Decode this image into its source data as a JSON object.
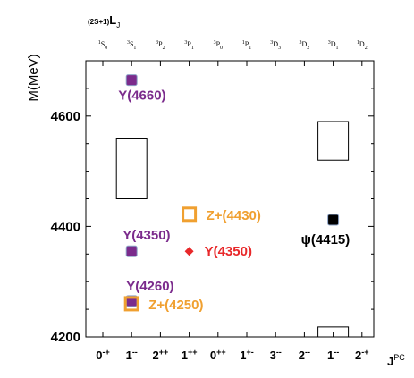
{
  "chart_data": {
    "type": "scatter",
    "title": "",
    "ylabel": "M(MeV)",
    "xlabel": "J^PC",
    "top_axis_label": "(2S+1)L_J",
    "ylim": [
      4200,
      4700
    ],
    "yticks": [
      4200,
      4400,
      4600
    ],
    "grid": false,
    "categories": [
      "0-+",
      "1--",
      "2++",
      "1++",
      "0++",
      "1+-",
      "3--",
      "2--",
      "1--",
      "2-+"
    ],
    "top_categories": [
      {
        "sup": "1",
        "main": "S",
        "sub": "0"
      },
      {
        "sup": "3",
        "main": "S",
        "sub": "1"
      },
      {
        "sup": "3",
        "main": "P",
        "sub": "2"
      },
      {
        "sup": "3",
        "main": "P",
        "sub": "1"
      },
      {
        "sup": "3",
        "main": "P",
        "sub": "0"
      },
      {
        "sup": "1",
        "main": "P",
        "sub": "1"
      },
      {
        "sup": "3",
        "main": "D",
        "sub": "3"
      },
      {
        "sup": "3",
        "main": "D",
        "sub": "2"
      },
      {
        "sup": "3",
        "main": "D",
        "sub": "1"
      },
      {
        "sup": "1",
        "main": "D",
        "sub": "2"
      }
    ],
    "boxes": [
      {
        "category_index": 1,
        "y_low": 4450,
        "y_high": 4560
      },
      {
        "category_index": 8,
        "y_low": 4520,
        "y_high": 4590
      },
      {
        "category_index": 8,
        "y_low": 4200,
        "y_high": 4218
      }
    ],
    "points": [
      {
        "label": "Y(4660)",
        "category_index": 1,
        "y": 4665,
        "marker": "square",
        "color": "#7b2b8c"
      },
      {
        "label": "Y(4350)",
        "category_index": 1,
        "y": 4355,
        "marker": "square",
        "color": "#7b2b8c"
      },
      {
        "label": "Y(4260)",
        "category_index": 1,
        "y": 4265,
        "marker": "square",
        "color": "#7b2b8c"
      },
      {
        "label": "Z+(4250)",
        "category_index": 1,
        "y": 4260,
        "marker": "open-square",
        "color": "#f0a030"
      },
      {
        "label": "Z+(4430)",
        "category_index": 3,
        "y": 4422,
        "marker": "open-square",
        "color": "#f0a030"
      },
      {
        "label": "Y(4350)",
        "category_index": 3,
        "y": 4355,
        "marker": "diamond",
        "color": "#e8282a"
      },
      {
        "label": "ψ(4415)",
        "category_index": 8,
        "y": 4412,
        "marker": "square",
        "color": "#000000"
      }
    ]
  }
}
